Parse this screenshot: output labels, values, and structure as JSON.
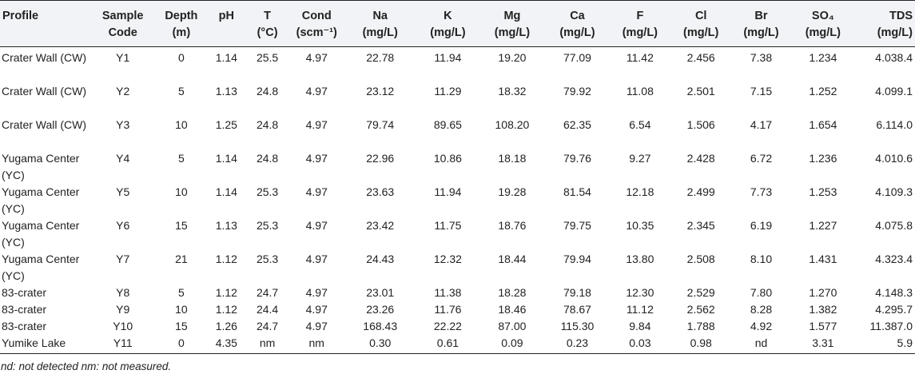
{
  "table": {
    "headers": [
      [
        "Profile",
        ""
      ],
      [
        "Sample",
        "Code"
      ],
      [
        "Depth",
        "(m)"
      ],
      [
        "pH",
        ""
      ],
      [
        "T",
        "(°C)"
      ],
      [
        "Cond",
        "(scm⁻¹)"
      ],
      [
        "Na",
        "(mg/L)"
      ],
      [
        "K",
        "(mg/L)"
      ],
      [
        "Mg",
        "(mg/L)"
      ],
      [
        "Ca",
        "(mg/L)"
      ],
      [
        "F",
        "(mg/L)"
      ],
      [
        "Cl",
        "(mg/L)"
      ],
      [
        "Br",
        "(mg/L)"
      ],
      [
        "SO₄",
        "(mg/L)"
      ],
      [
        "TDS",
        "(mg/L)"
      ]
    ],
    "rows": [
      [
        "Crater Wall (CW)",
        "Y1",
        "0",
        "1.14",
        "25.5",
        "4.97",
        "22.78",
        "11.94",
        "19.20",
        "77.09",
        "11.42",
        "2.456",
        "7.38",
        "1.234",
        "4.038.4"
      ],
      [
        "Crater Wall (CW)",
        "Y2",
        "5",
        "1.13",
        "24.8",
        "4.97",
        "23.12",
        "11.29",
        "18.32",
        "79.92",
        "11.08",
        "2.501",
        "7.15",
        "1.252",
        "4.099.1"
      ],
      [
        "Crater Wall (CW)",
        "Y3",
        "10",
        "1.25",
        "24.8",
        "4.97",
        "79.74",
        "89.65",
        "108.20",
        "62.35",
        "6.54",
        "1.506",
        "4.17",
        "1.654",
        "6.114.0"
      ],
      [
        "Yugama Center (YC)",
        "Y4",
        "5",
        "1.14",
        "24.8",
        "4.97",
        "22.96",
        "10.86",
        "18.18",
        "79.76",
        "9.27",
        "2.428",
        "6.72",
        "1.236",
        "4.010.6"
      ],
      [
        "Yugama Center (YC)",
        "Y5",
        "10",
        "1.14",
        "25.3",
        "4.97",
        "23.63",
        "11.94",
        "19.28",
        "81.54",
        "12.18",
        "2.499",
        "7.73",
        "1.253",
        "4.109.3"
      ],
      [
        "Yugama Center (YC)",
        "Y6",
        "15",
        "1.13",
        "25.3",
        "4.97",
        "23.42",
        "11.75",
        "18.76",
        "79.75",
        "10.35",
        "2.345",
        "6.19",
        "1.227",
        "4.075.8"
      ],
      [
        "Yugama Center (YC)",
        "Y7",
        "21",
        "1.12",
        "25.3",
        "4.97",
        "24.43",
        "12.32",
        "18.44",
        "79.94",
        "13.80",
        "2.508",
        "8.10",
        "1.431",
        "4.323.4"
      ],
      [
        "83-crater",
        "Y8",
        "5",
        "1.12",
        "24.7",
        "4.97",
        "23.01",
        "11.38",
        "18.28",
        "79.18",
        "12.30",
        "2.529",
        "7.80",
        "1.270",
        "4.148.3"
      ],
      [
        "83-crater",
        "Y9",
        "10",
        "1.12",
        "24.4",
        "4.97",
        "23.26",
        "11.76",
        "18.46",
        "78.67",
        "11.12",
        "2.562",
        "8.28",
        "1.382",
        "4.295.7"
      ],
      [
        "83-crater",
        "Y10",
        "15",
        "1.26",
        "24.7",
        "4.97",
        "168.43",
        "22.22",
        "87.00",
        "115.30",
        "9.84",
        "1.788",
        "4.92",
        "1.577",
        "11.387.0"
      ],
      [
        "Yumike Lake",
        "Y11",
        "0",
        "4.35",
        "nm",
        "nm",
        "0.30",
        "0.61",
        "0.09",
        "0.23",
        "0.03",
        "0.98",
        "nd",
        "3.31",
        "5.9"
      ]
    ]
  },
  "footnote": "nd: not detected nm: not measured."
}
